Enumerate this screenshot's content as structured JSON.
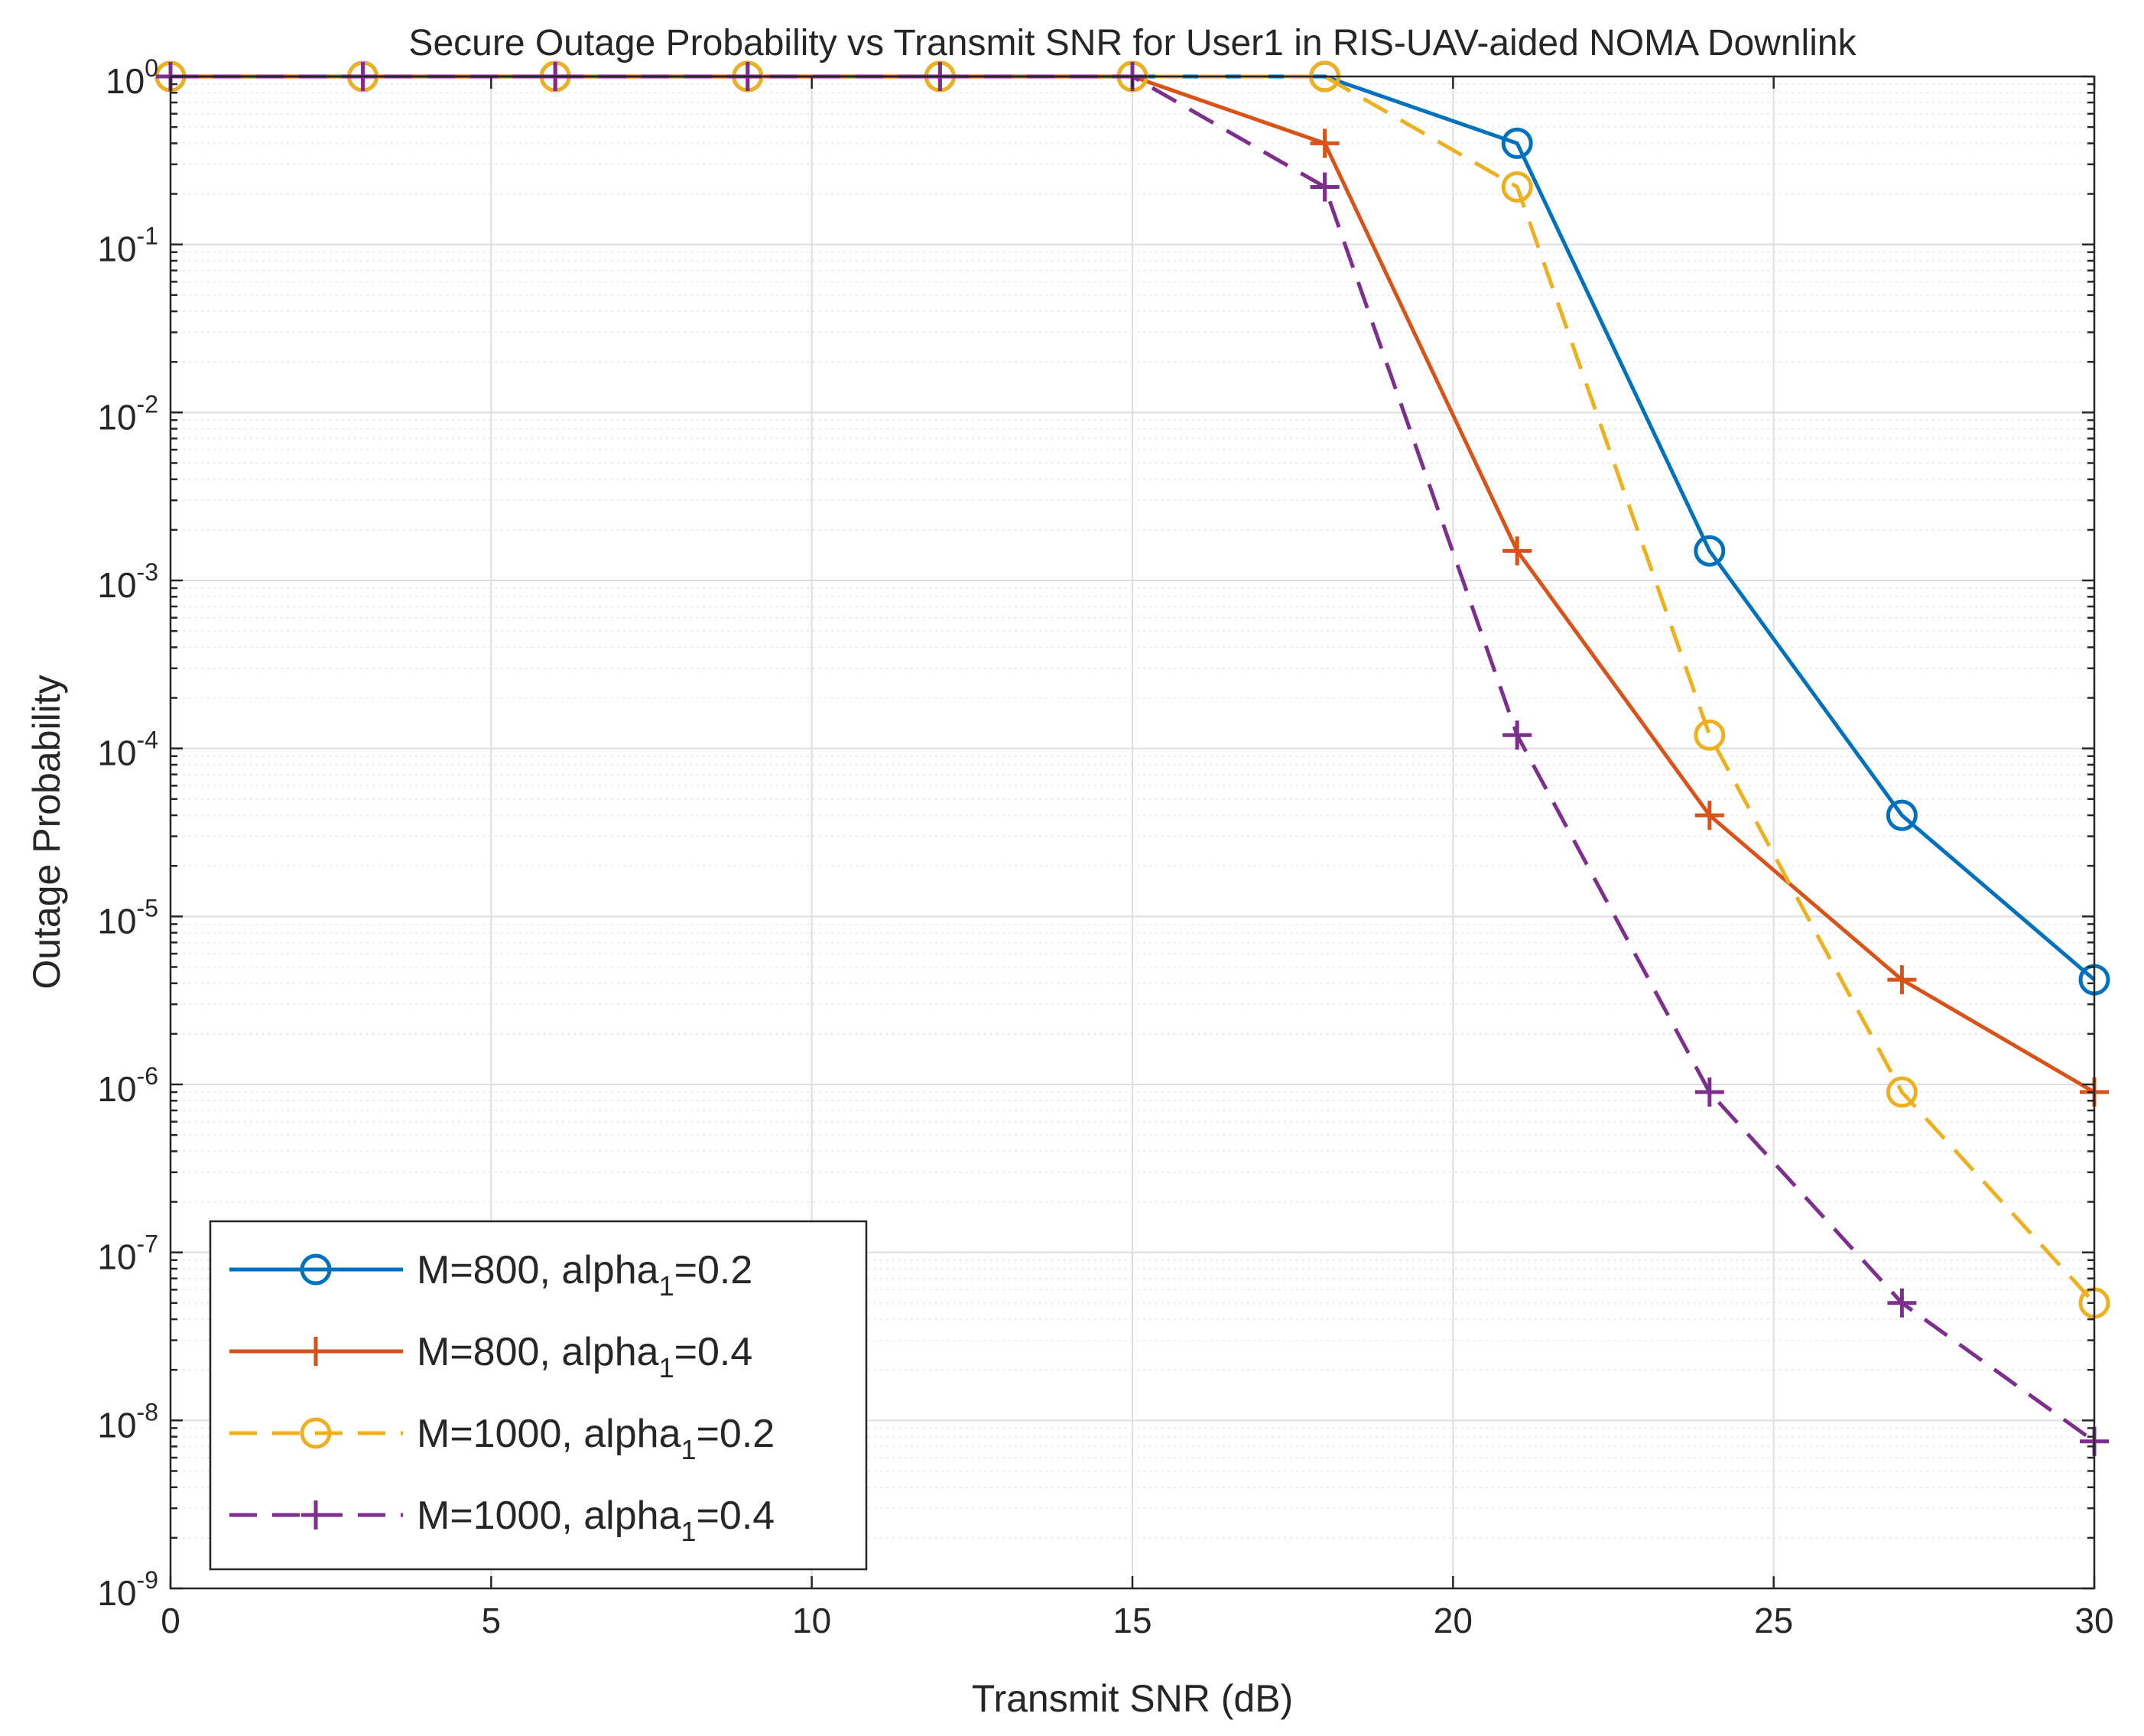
{
  "chart_data": {
    "type": "line",
    "title": "Secure Outage Probability vs Transmit SNR for User1 in RIS-UAV-aided NOMA Downlink",
    "xlabel": "Transmit SNR (dB)",
    "ylabel": "Outage Probability",
    "xlim": [
      0,
      30
    ],
    "ylim": [
      1e-09,
      1
    ],
    "yscale": "log",
    "grid": true,
    "minor_grid": true,
    "legend_position": "bottom-left",
    "x_ticks": [
      0,
      5,
      10,
      15,
      20,
      25,
      30
    ],
    "x_tick_labels": [
      "0",
      "5",
      "10",
      "15",
      "20",
      "25",
      "30"
    ],
    "y_tick_exponents": [
      0,
      -1,
      -2,
      -3,
      -4,
      -5,
      -6,
      -7,
      -8,
      -9
    ],
    "y_tick_base": "10",
    "x": [
      0,
      3,
      6,
      9,
      12,
      15,
      18,
      21,
      24,
      27,
      30
    ],
    "series": [
      {
        "name": "M=800, alpha1=0.2",
        "legend_main": "M=800, alpha",
        "legend_sub": "1",
        "legend_tail": "=0.2",
        "color": "#0072BD",
        "line_style": "solid",
        "marker": "circle-marker",
        "values": [
          1,
          1,
          1,
          1,
          1,
          1,
          1,
          0.4,
          0.0015,
          4e-05,
          4.2e-06
        ]
      },
      {
        "name": "M=800, alpha1=0.4",
        "legend_main": "M=800, alpha",
        "legend_sub": "1",
        "legend_tail": "=0.4",
        "color": "#D95319",
        "line_style": "solid",
        "marker": "plus-marker",
        "values": [
          1,
          1,
          1,
          1,
          1,
          1,
          0.4,
          0.0015,
          4e-05,
          4.2e-06,
          9e-07
        ]
      },
      {
        "name": "M=1000, alpha1=0.2",
        "legend_main": "M=1000, alpha",
        "legend_sub": "1",
        "legend_tail": "=0.2",
        "color": "#EDB120",
        "line_style": "dashed",
        "marker": "circle-marker",
        "values": [
          1,
          1,
          1,
          1,
          1,
          1,
          1,
          0.22,
          0.00012,
          9e-07,
          5e-08
        ]
      },
      {
        "name": "M=1000, alpha1=0.4",
        "legend_main": "M=1000, alpha",
        "legend_sub": "1",
        "legend_tail": "=0.4",
        "color": "#7E2F8E",
        "line_style": "dashed",
        "marker": "plus-marker",
        "values": [
          1,
          1,
          1,
          1,
          1,
          1,
          0.22,
          0.00012,
          9e-07,
          5e-08,
          7.5e-09
        ]
      }
    ]
  }
}
